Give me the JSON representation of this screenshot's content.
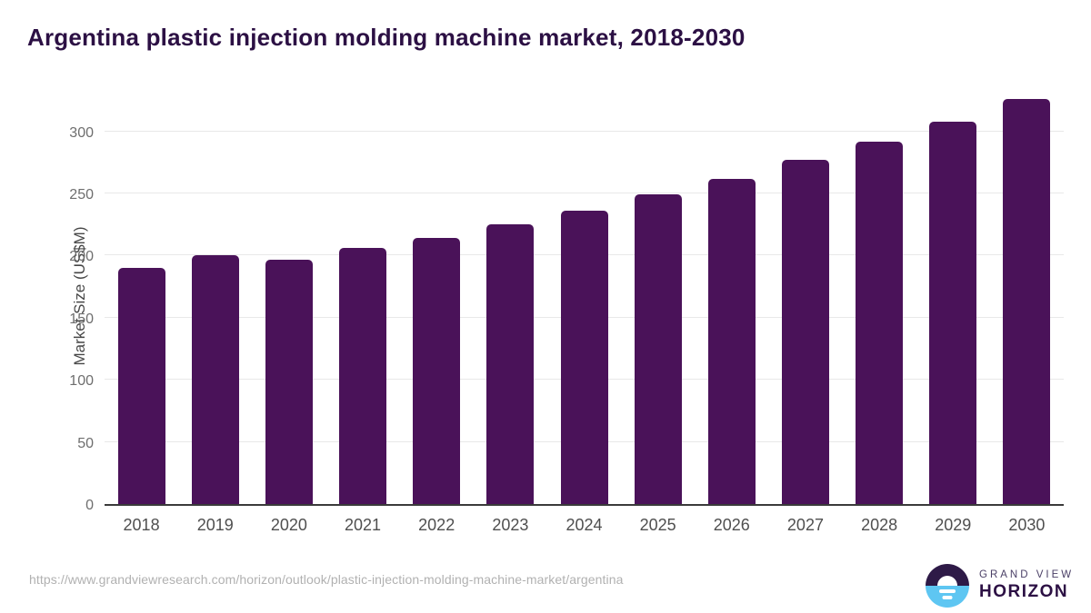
{
  "page": {
    "title": "Argentina plastic injection molding machine market, 2018-2030",
    "source_url": "https://www.grandviewresearch.com/horizon/outlook/plastic-injection-molding-machine-market/argentina"
  },
  "logo": {
    "line1": "GRAND VIEW",
    "line2": "HORIZON",
    "icon": "horizon-sunrise-icon",
    "colors": {
      "circle_top": "#2e1a47",
      "circle_bottom": "#5ec6f2",
      "text_top": "#4a3f66",
      "text_bottom": "#2c1044"
    }
  },
  "chart_data": {
    "type": "bar",
    "title": "Argentina plastic injection molding machine market, 2018-2030",
    "categories": [
      "2018",
      "2019",
      "2020",
      "2021",
      "2022",
      "2023",
      "2024",
      "2025",
      "2026",
      "2027",
      "2028",
      "2029",
      "2030"
    ],
    "values": [
      190,
      200,
      197,
      206,
      214,
      225,
      236,
      249,
      262,
      277,
      292,
      308,
      326
    ],
    "xlabel": "",
    "ylabel": "Market Size (US$M)",
    "ylim": [
      0,
      340
    ],
    "yticks": [
      0,
      50,
      100,
      150,
      200,
      250,
      300
    ],
    "bar_color": "#4a1259",
    "gridline_color": "#e8e8e8",
    "axis_color": "#3a3a3a",
    "grid": true,
    "legend": false
  }
}
